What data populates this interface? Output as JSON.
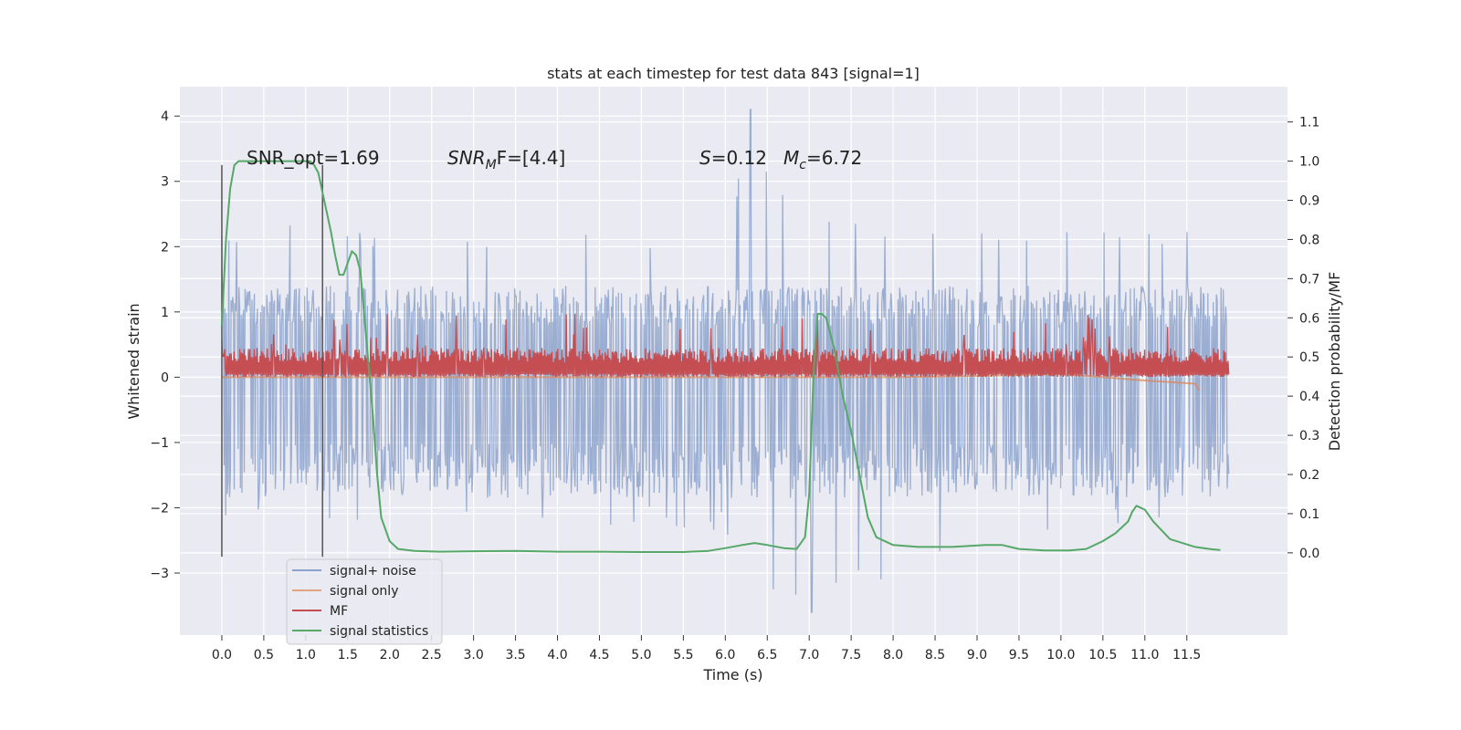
{
  "chart_data": {
    "type": "line",
    "title": "stats at each timestep for test data 843 [signal=1]",
    "xlabel": "Time (s)",
    "ylabel": "Whitened strain",
    "ylabel_right": "Detection probability/MF",
    "xlim": [
      -0.5,
      12.7
    ],
    "ylim": [
      -3.95,
      4.45
    ],
    "ylim_right": [
      -0.21,
      1.19
    ],
    "x_ticks": [
      "0.0",
      "0.5",
      "1.0",
      "1.5",
      "2.0",
      "2.5",
      "3.0",
      "3.5",
      "4.0",
      "4.5",
      "5.0",
      "5.5",
      "6.0",
      "6.5",
      "7.0",
      "7.5",
      "8.0",
      "8.5",
      "9.0",
      "9.5",
      "10.0",
      "10.5",
      "11.0",
      "11.5"
    ],
    "y_ticks": [
      "−3",
      "−2",
      "−1",
      "0",
      "1",
      "2",
      "3",
      "4"
    ],
    "y_ticks_right": [
      "0.0",
      "0.1",
      "0.2",
      "0.3",
      "0.4",
      "0.5",
      "0.6",
      "0.7",
      "0.8",
      "0.9",
      "1.0",
      "1.1"
    ],
    "grid": true,
    "legend_position": "lower-left",
    "annotations": {
      "snr_opt": "SNR_opt=1.69",
      "snr_mf_name": "SNR",
      "snr_mf_sub": "M",
      "snr_mf_rest": "F=[4.4]",
      "s_name": "S",
      "s_value": "=0.12",
      "mc_name": "M",
      "mc_sub": "c",
      "mc_value": "=6.72"
    },
    "vertical_markers": {
      "x": [
        0.0,
        1.2
      ],
      "y_range": [
        -2.75,
        3.25
      ]
    },
    "series": [
      {
        "name": "signal+ noise",
        "color": "#4c72b0",
        "envelope": {
          "x": [
            0.0,
            1.0,
            2.0,
            3.0,
            4.0,
            5.0,
            6.0,
            6.3,
            7.0,
            8.0,
            9.0,
            10.0,
            11.0,
            12.0
          ],
          "upper": [
            2.3,
            2.5,
            2.2,
            2.3,
            2.3,
            2.2,
            2.3,
            4.1,
            2.4,
            2.4,
            2.5,
            2.4,
            2.3,
            2.2
          ],
          "lower": [
            -2.2,
            -2.6,
            -2.2,
            -2.2,
            -2.3,
            -2.3,
            -2.4,
            -3.2,
            -3.6,
            -3.1,
            -2.4,
            -2.5,
            -2.3,
            -2.1
          ],
          "dense_upper": 1.4,
          "dense_lower": -1.85
        }
      },
      {
        "name": "signal only",
        "color": "#dd8452",
        "x": [
          0.0,
          8.0,
          9.0,
          10.0,
          11.0,
          11.6,
          11.65
        ],
        "y": [
          0.0,
          0.0,
          0.02,
          0.05,
          -0.05,
          -0.1,
          -0.2
        ]
      },
      {
        "name": "MF",
        "color": "#c44e52",
        "band": {
          "lower": 0.0,
          "upper": 0.45,
          "peaks_max": 1.0
        }
      },
      {
        "name": "signal statistics",
        "color": "#55a868",
        "axis": "right",
        "x": [
          0.0,
          0.05,
          0.1,
          0.15,
          0.2,
          0.3,
          0.5,
          0.8,
          1.0,
          1.05,
          1.1,
          1.15,
          1.2,
          1.3,
          1.35,
          1.4,
          1.45,
          1.5,
          1.55,
          1.6,
          1.65,
          1.7,
          1.8,
          1.85,
          1.9,
          2.0,
          2.1,
          2.3,
          2.6,
          3.0,
          3.5,
          4.0,
          4.5,
          5.0,
          5.5,
          5.8,
          6.0,
          6.2,
          6.35,
          6.5,
          6.7,
          6.85,
          6.95,
          7.0,
          7.05,
          7.1,
          7.15,
          7.2,
          7.3,
          7.4,
          7.5,
          7.6,
          7.7,
          7.8,
          8.0,
          8.3,
          8.7,
          9.1,
          9.3,
          9.5,
          9.8,
          10.1,
          10.3,
          10.5,
          10.65,
          10.8,
          10.85,
          10.9,
          11.0,
          11.1,
          11.3,
          11.6,
          11.8,
          11.9
        ],
        "y": [
          0.58,
          0.8,
          0.93,
          0.99,
          1.0,
          1.0,
          1.0,
          1.0,
          1.0,
          1.0,
          0.99,
          0.97,
          0.92,
          0.82,
          0.76,
          0.71,
          0.71,
          0.74,
          0.77,
          0.76,
          0.72,
          0.6,
          0.35,
          0.2,
          0.09,
          0.03,
          0.01,
          0.005,
          0.003,
          0.004,
          0.005,
          0.003,
          0.003,
          0.002,
          0.002,
          0.005,
          0.012,
          0.02,
          0.025,
          0.02,
          0.012,
          0.01,
          0.04,
          0.15,
          0.45,
          0.61,
          0.61,
          0.6,
          0.52,
          0.4,
          0.31,
          0.2,
          0.09,
          0.04,
          0.02,
          0.015,
          0.015,
          0.02,
          0.02,
          0.01,
          0.006,
          0.006,
          0.01,
          0.03,
          0.05,
          0.08,
          0.105,
          0.12,
          0.11,
          0.08,
          0.035,
          0.015,
          0.009,
          0.007
        ]
      }
    ]
  }
}
